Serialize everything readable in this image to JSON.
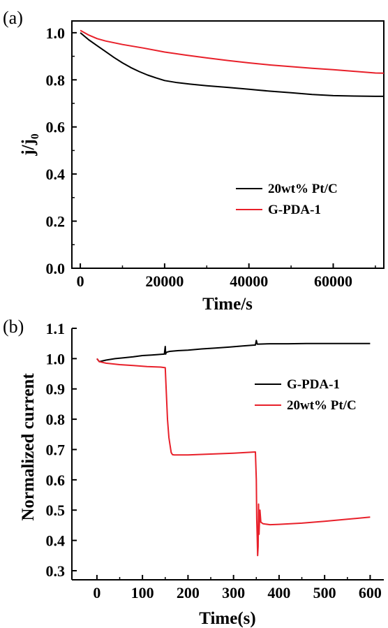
{
  "chart_data": [
    {
      "panel": "(a)",
      "type": "line",
      "xlabel": "Time/s",
      "ylabel": "j/j",
      "ylabel_sub": "0",
      "xlim": [
        -2000,
        72000
      ],
      "ylim": [
        0.0,
        1.05
      ],
      "xticks": [
        0,
        20000,
        40000,
        60000
      ],
      "yticks": [
        0.0,
        0.2,
        0.4,
        0.6,
        0.8,
        1.0
      ],
      "xtick_labels": [
        "0",
        "20000",
        "40000",
        "60000"
      ],
      "ytick_labels": [
        "0.0",
        "0.2",
        "0.4",
        "0.6",
        "0.8",
        "1.0"
      ],
      "legend_position": "middle-right",
      "series": [
        {
          "name": "20wt% Pt/C",
          "color": "#000000",
          "x": [
            0,
            1000,
            2000,
            4000,
            6000,
            8000,
            10000,
            12000,
            14000,
            16000,
            18000,
            20000,
            23000,
            26000,
            30000,
            35000,
            40000,
            45000,
            50000,
            55000,
            60000,
            65000,
            70000,
            72000
          ],
          "y": [
            1.0,
            0.985,
            0.97,
            0.945,
            0.92,
            0.895,
            0.872,
            0.852,
            0.835,
            0.82,
            0.808,
            0.797,
            0.788,
            0.782,
            0.775,
            0.768,
            0.76,
            0.752,
            0.745,
            0.738,
            0.733,
            0.731,
            0.73,
            0.73
          ]
        },
        {
          "name": "G-PDA-1",
          "color": "#e8202a",
          "x": [
            0,
            1000,
            2000,
            4000,
            6000,
            10000,
            15000,
            20000,
            25000,
            30000,
            35000,
            40000,
            45000,
            50000,
            55000,
            60000,
            65000,
            70000,
            72000
          ],
          "y": [
            1.01,
            1.0,
            0.99,
            0.975,
            0.965,
            0.95,
            0.935,
            0.918,
            0.905,
            0.893,
            0.882,
            0.872,
            0.863,
            0.856,
            0.849,
            0.843,
            0.836,
            0.829,
            0.828
          ]
        }
      ]
    },
    {
      "panel": "(b)",
      "type": "line",
      "xlabel": "Time(s)",
      "ylabel": "Normalized current",
      "xlim": [
        -55,
        630
      ],
      "ylim": [
        0.27,
        1.1
      ],
      "xticks": [
        0,
        100,
        200,
        300,
        400,
        500,
        600
      ],
      "yticks": [
        0.3,
        0.4,
        0.5,
        0.6,
        0.7,
        0.8,
        0.9,
        1.0,
        1.1
      ],
      "xtick_labels": [
        "0",
        "100",
        "200",
        "300",
        "400",
        "500",
        "600"
      ],
      "ytick_labels": [
        "0.3",
        "0.4",
        "0.5",
        "0.6",
        "0.7",
        "0.8",
        "0.9",
        "1.0",
        "1.1"
      ],
      "legend_position": "middle-right",
      "series": [
        {
          "name": "G-PDA-1",
          "color": "#000000",
          "x": [
            0,
            5,
            20,
            40,
            60,
            80,
            100,
            120,
            148,
            150,
            151,
            152,
            155,
            160,
            175,
            200,
            230,
            260,
            290,
            320,
            348,
            350,
            352,
            355,
            380,
            420,
            460,
            500,
            540,
            580,
            600
          ],
          "y": [
            1.0,
            0.99,
            0.995,
            1.0,
            1.003,
            1.006,
            1.01,
            1.012,
            1.015,
            1.04,
            1.015,
            1.02,
            1.022,
            1.024,
            1.026,
            1.028,
            1.032,
            1.035,
            1.038,
            1.042,
            1.045,
            1.06,
            1.048,
            1.048,
            1.049,
            1.049,
            1.05,
            1.05,
            1.05,
            1.05,
            1.05
          ]
        },
        {
          "name": "20wt% Pt/C",
          "color": "#e8202a",
          "x": [
            0,
            5,
            20,
            50,
            80,
            110,
            140,
            150,
            152,
            155,
            158,
            160,
            163,
            166,
            170,
            200,
            250,
            300,
            348,
            350,
            351,
            352,
            353,
            354,
            355,
            356,
            357,
            358,
            360,
            365,
            380,
            400,
            450,
            500,
            550,
            600
          ],
          "y": [
            1.0,
            0.99,
            0.985,
            0.98,
            0.977,
            0.974,
            0.972,
            0.97,
            0.9,
            0.8,
            0.74,
            0.72,
            0.69,
            0.683,
            0.682,
            0.682,
            0.685,
            0.688,
            0.692,
            0.6,
            0.47,
            0.41,
            0.35,
            0.38,
            0.52,
            0.42,
            0.47,
            0.5,
            0.46,
            0.455,
            0.452,
            0.453,
            0.457,
            0.463,
            0.47,
            0.477
          ]
        }
      ]
    }
  ]
}
